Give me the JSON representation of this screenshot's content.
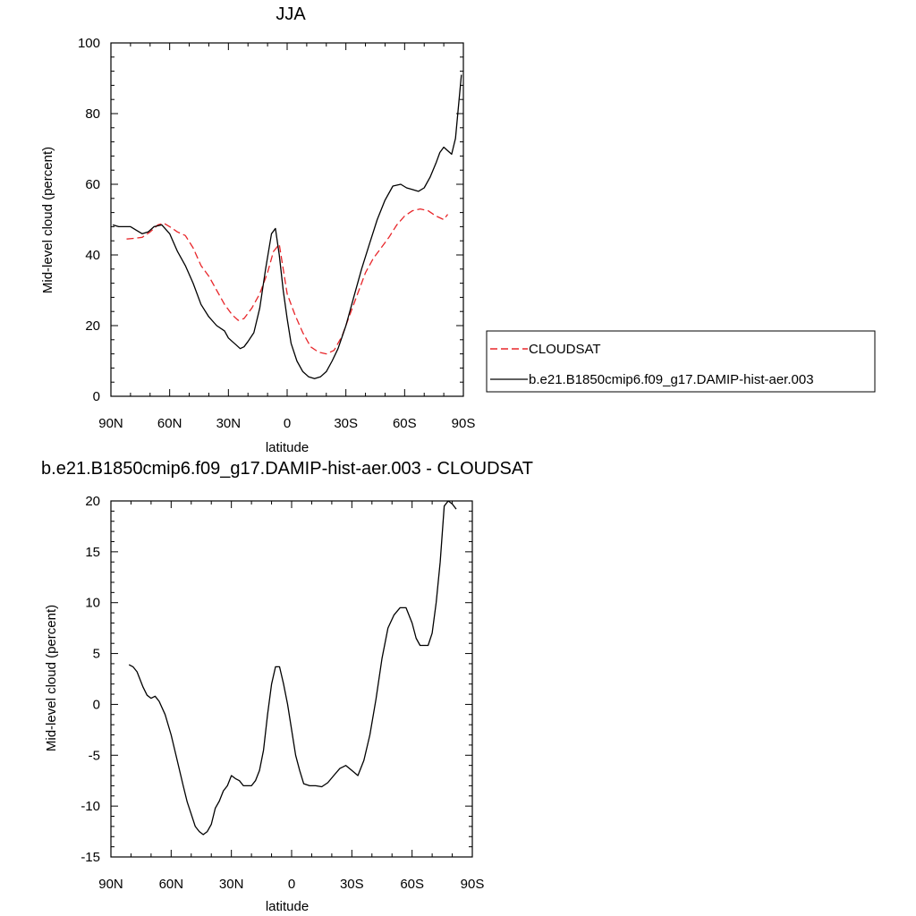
{
  "chart_data": [
    {
      "type": "line",
      "title": "JJA",
      "xlabel": "latitude",
      "ylabel": "Mid-level cloud (percent)",
      "xlim": [
        90,
        -90
      ],
      "ylim": [
        0,
        100
      ],
      "xticks": [
        90,
        60,
        30,
        0,
        -30,
        -60,
        -90
      ],
      "xtick_labels": [
        "90N",
        "60N",
        "30N",
        "0",
        "30S",
        "60S",
        "90S"
      ],
      "yticks": [
        0,
        20,
        40,
        60,
        80,
        100
      ],
      "ytick_labels": [
        "0",
        "20",
        "40",
        "60",
        "80",
        "100"
      ],
      "legend_placement": "right",
      "series": [
        {
          "name": "CLOUDSAT",
          "color": "#e8262a",
          "dash": "dashed",
          "x": [
            82,
            78,
            74,
            70,
            66,
            63,
            60,
            56,
            52,
            48,
            44,
            40,
            36,
            32,
            28,
            25,
            22,
            18,
            14,
            10,
            7,
            4,
            0,
            -4,
            -8,
            -12,
            -16,
            -20,
            -24,
            -28,
            -32,
            -36,
            -40,
            -44,
            -48,
            -52,
            -56,
            -60,
            -64,
            -68,
            -72,
            -76,
            -80,
            -82
          ],
          "y": [
            44.5,
            44.7,
            45,
            46.5,
            48.5,
            49,
            48,
            46.5,
            45.5,
            42,
            37,
            34,
            30,
            26,
            23,
            21.5,
            22,
            25,
            29,
            35,
            41,
            43,
            29,
            23,
            18,
            14,
            12.5,
            12,
            13,
            17,
            23,
            29,
            35,
            39,
            42,
            45,
            48.5,
            51,
            52.5,
            53,
            52.5,
            51,
            50,
            51.5
          ]
        },
        {
          "name": "b.e21.B1850cmip6.f09_g17.DAMIP-hist-aer.003",
          "color": "#000000",
          "dash": "solid",
          "x": [
            89,
            86,
            83,
            80,
            77,
            74,
            71,
            68,
            64,
            60,
            56,
            52,
            48,
            44,
            40,
            36,
            32,
            30,
            28,
            26,
            24,
            22,
            20,
            17,
            14,
            11,
            8,
            6,
            4,
            2,
            0,
            -2,
            -5,
            -8,
            -11,
            -14,
            -17,
            -20,
            -23,
            -26,
            -30,
            -34,
            -38,
            -42,
            -46,
            -50,
            -54,
            -58,
            -61,
            -64,
            -67,
            -70,
            -73,
            -76,
            -78,
            -80,
            -82,
            -84,
            -86,
            -89
          ],
          "y": [
            48.5,
            48,
            48,
            48,
            47,
            46,
            46.5,
            48,
            48.5,
            46,
            41,
            37,
            32,
            26,
            22.5,
            20,
            18.5,
            16.5,
            15.5,
            14.5,
            13.5,
            14,
            15.5,
            18,
            25,
            36,
            46,
            47.5,
            40,
            30,
            22,
            15,
            10,
            7,
            5.5,
            5,
            5.5,
            7,
            10,
            13.5,
            20,
            28,
            36,
            43,
            50,
            55.5,
            59.5,
            60,
            59,
            58.5,
            58,
            59,
            62,
            66,
            69,
            70.5,
            69.5,
            68.5,
            73,
            91
          ]
        }
      ]
    },
    {
      "type": "line",
      "title": "b.e21.B1850cmip6.f09_g17.DAMIP-hist-aer.003 - CLOUDSAT",
      "xlabel": "latitude",
      "ylabel": "Mid-level cloud (percent)",
      "xlim": [
        90,
        -90
      ],
      "ylim": [
        -15,
        20
      ],
      "xticks": [
        90,
        60,
        30,
        0,
        -30,
        -60,
        -90
      ],
      "xtick_labels": [
        "90N",
        "60N",
        "30N",
        "0",
        "30S",
        "60S",
        "90S"
      ],
      "yticks": [
        -15,
        -10,
        -5,
        0,
        5,
        10,
        15,
        20
      ],
      "ytick_labels": [
        "-15",
        "-10",
        "-5",
        "0",
        "5",
        "10",
        "15",
        "20"
      ],
      "series": [
        {
          "color": "#000000",
          "dash": "solid",
          "x": [
            81,
            79,
            77,
            74,
            72,
            70,
            68,
            66,
            63,
            60,
            57,
            54,
            52,
            50,
            48,
            46,
            44,
            42,
            40,
            38,
            36,
            34,
            32,
            30,
            28,
            26,
            24,
            22,
            20,
            18,
            16,
            14,
            12,
            10,
            8,
            6,
            4,
            2,
            0,
            -2,
            -4,
            -6,
            -9,
            -12,
            -15,
            -18,
            -21,
            -24,
            -27,
            -30,
            -33,
            -36,
            -39,
            -42,
            -45,
            -48,
            -51,
            -54,
            -57,
            -60,
            -62,
            -64,
            -66,
            -68,
            -70,
            -72,
            -74,
            -76,
            -78,
            -80,
            -82
          ],
          "y": [
            3.9,
            3.7,
            3.2,
            1.7,
            0.9,
            0.6,
            0.8,
            0.3,
            -1,
            -3,
            -5.5,
            -8,
            -9.6,
            -10.8,
            -12,
            -12.5,
            -12.8,
            -12.5,
            -11.8,
            -10.2,
            -9.5,
            -8.5,
            -8,
            -7,
            -7.3,
            -7.5,
            -8,
            -8,
            -8,
            -7.5,
            -6.5,
            -4.5,
            -1,
            2,
            3.7,
            3.7,
            2,
            0,
            -2.5,
            -5,
            -6.5,
            -7.8,
            -8,
            -8,
            -8.1,
            -7.7,
            -7,
            -6.3,
            -6,
            -6.5,
            -7,
            -5.5,
            -3,
            0.5,
            4.5,
            7.5,
            8.8,
            9.5,
            9.5,
            8,
            6.5,
            5.8,
            5.8,
            5.8,
            7,
            10,
            14,
            19.5,
            20,
            19.7,
            19.2
          ]
        }
      ]
    }
  ]
}
